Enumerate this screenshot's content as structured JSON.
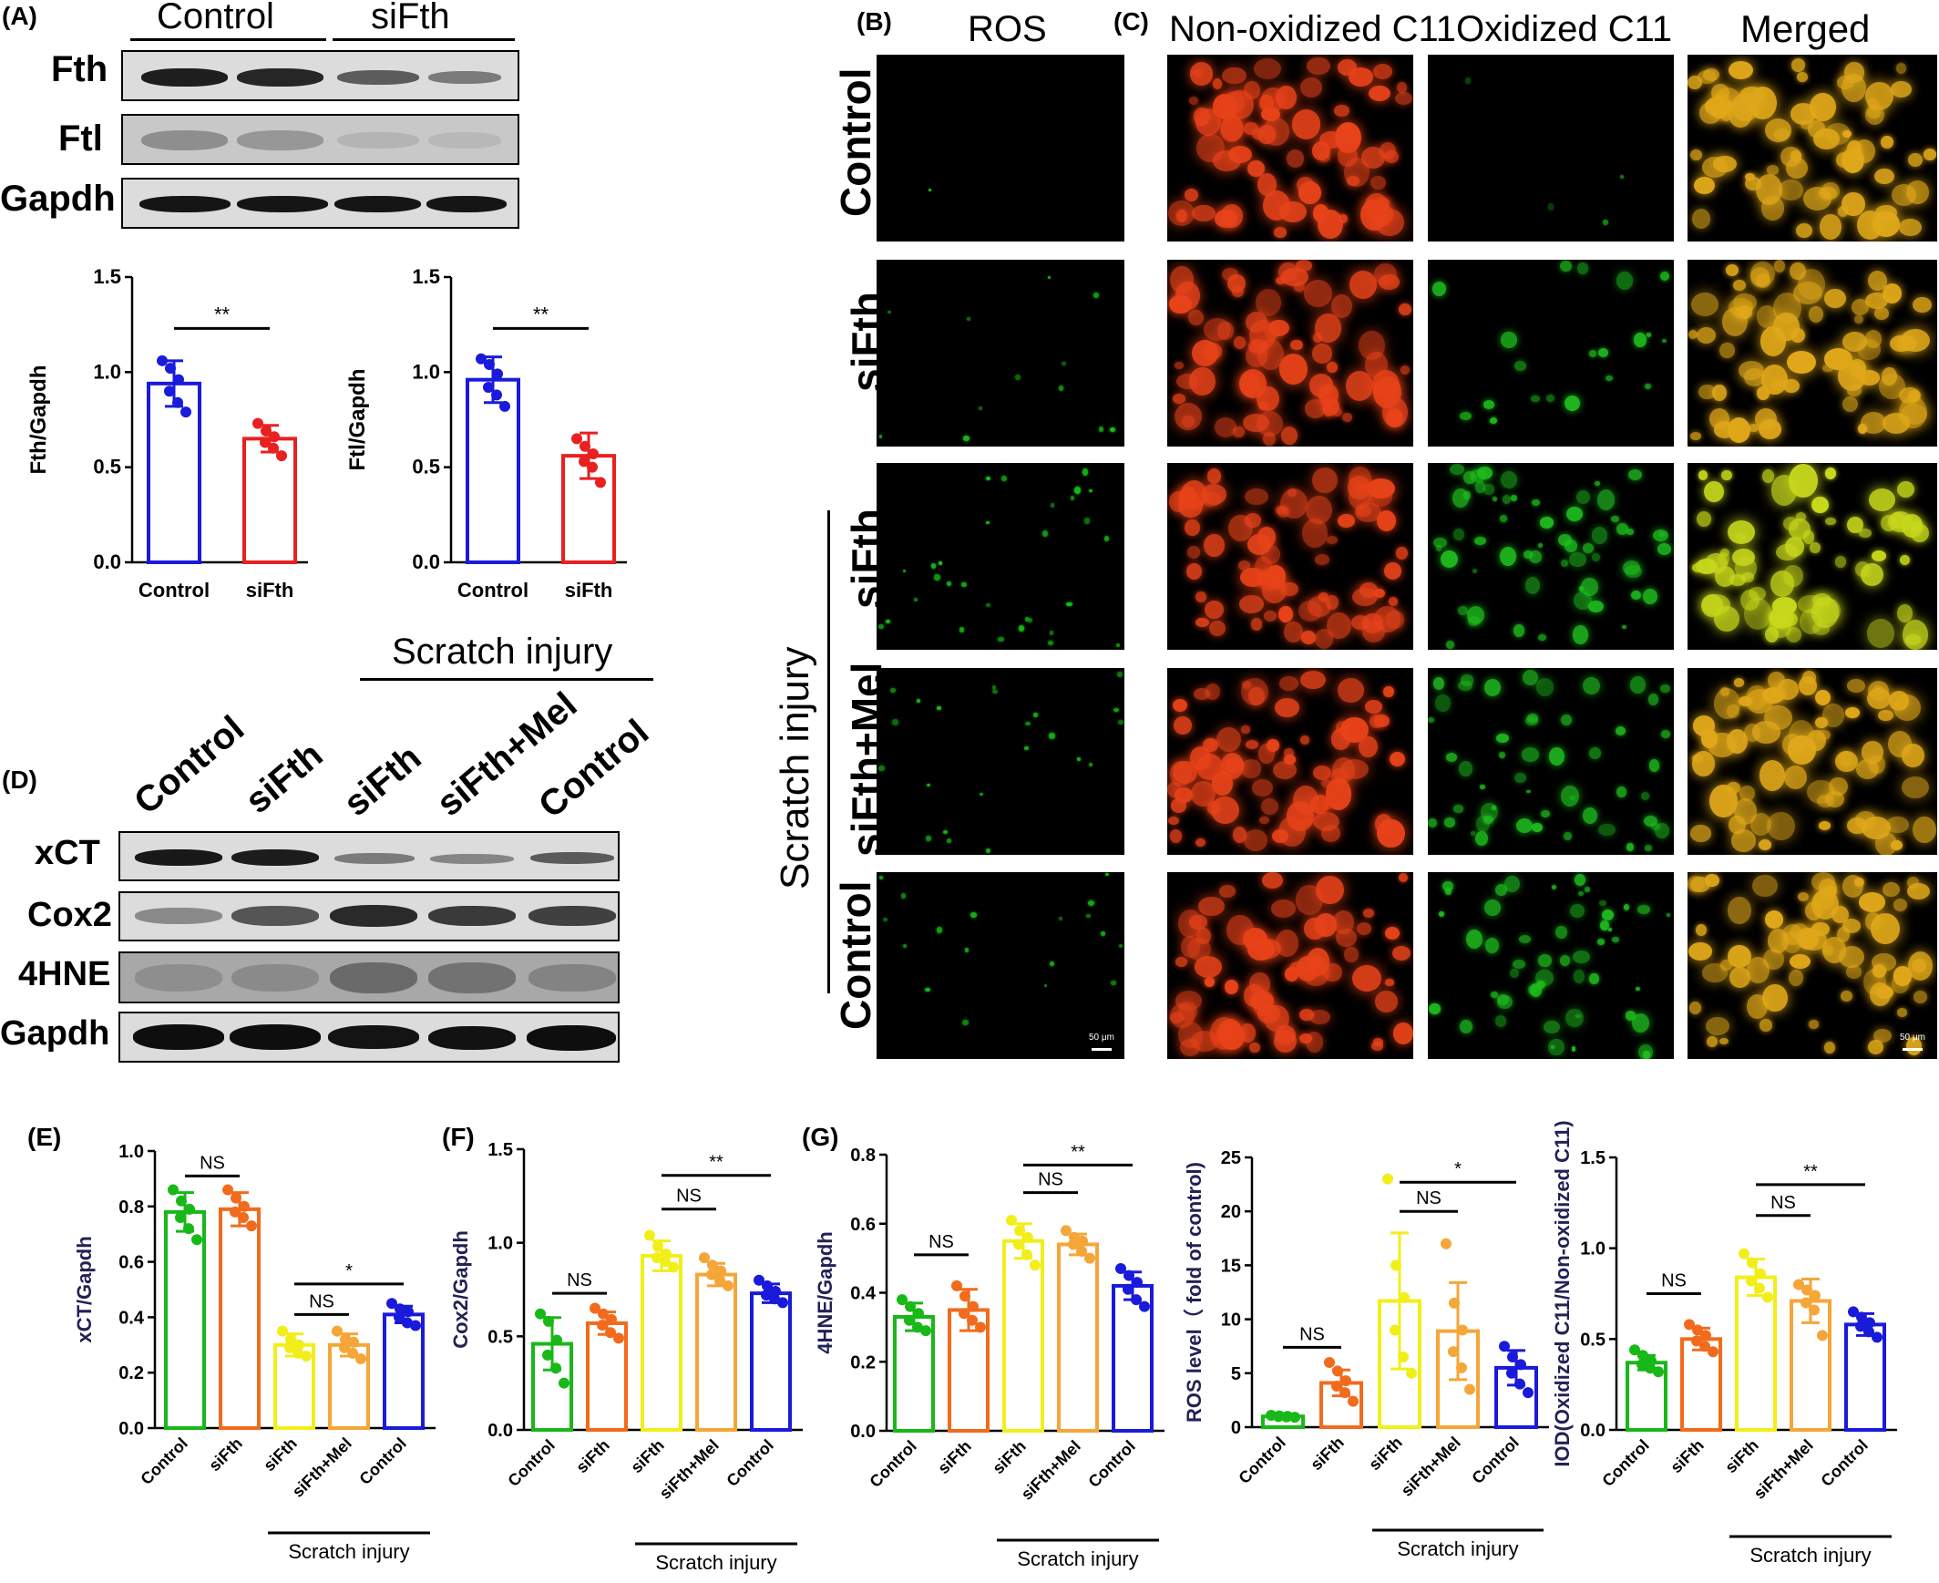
{
  "panel_labels": {
    "A": "(A)",
    "B": "(B)",
    "C": "(C)",
    "D": "(D)",
    "E": "(E)",
    "F": "(F)",
    "G": "(G)"
  },
  "blot_a": {
    "groups": [
      "Control",
      "siFth"
    ],
    "rows": [
      "Fth",
      "Ftl",
      "Gapdh"
    ]
  },
  "blot_d": {
    "group_label": "Scratch injury",
    "lanes": [
      "Control",
      "siFth",
      "siFth",
      "siFth+Mel",
      "Control"
    ],
    "rows": [
      "xCT",
      "Cox2",
      "4HNE",
      "Gapdh"
    ]
  },
  "images": {
    "column_headers": [
      "ROS",
      "Non-oxidized C11",
      "Oxidized C11",
      "Merged"
    ],
    "row_labels": [
      "Control",
      "siFth",
      "siFth",
      "siFth+Mel",
      "Control"
    ],
    "group_label": "Scratch injury",
    "scale_bar": "50 μm",
    "colors": {
      "ros": "#17c417",
      "red": "#e8431a",
      "green": "#1fbf1f",
      "merged": "#e0a81a"
    }
  },
  "chart_data": [
    {
      "id": "A1",
      "type": "bar",
      "title": "",
      "ylabel": "Fth/Gapdh",
      "ylim": [
        0,
        1.5
      ],
      "yticks": [
        "0.0",
        "0.5",
        "1.0",
        "1.5"
      ],
      "categories": [
        "Control",
        "siFth"
      ],
      "values": [
        0.94,
        0.65
      ],
      "sd": [
        0.12,
        0.07
      ],
      "colors": [
        "#1a1adb",
        "#e82020"
      ],
      "points": [
        [
          1.06,
          1.02,
          0.96,
          0.9,
          0.84,
          0.79
        ],
        [
          0.73,
          0.69,
          0.66,
          0.63,
          0.6,
          0.56
        ]
      ],
      "sig": [
        {
          "from": 0,
          "to": 1,
          "label": "**",
          "y": 1.23
        }
      ],
      "group_line": null
    },
    {
      "id": "A2",
      "type": "bar",
      "title": "",
      "ylabel": "Ftl/Gapdh",
      "ylim": [
        0,
        1.5
      ],
      "yticks": [
        "0.0",
        "0.5",
        "1.0",
        "1.5"
      ],
      "categories": [
        "Control",
        "siFth"
      ],
      "values": [
        0.96,
        0.56
      ],
      "sd": [
        0.12,
        0.12
      ],
      "colors": [
        "#1a1adb",
        "#e82020"
      ],
      "points": [
        [
          1.07,
          1.04,
          0.99,
          0.92,
          0.88,
          0.82
        ],
        [
          0.65,
          0.61,
          0.57,
          0.53,
          0.5,
          0.42
        ]
      ],
      "sig": [
        {
          "from": 0,
          "to": 1,
          "label": "**",
          "y": 1.23
        }
      ],
      "group_line": null
    },
    {
      "id": "E",
      "type": "bar",
      "title": "",
      "ylabel": "xCT/Gapdh",
      "ylim": [
        0,
        1.0
      ],
      "yticks": [
        "0.0",
        "0.2",
        "0.4",
        "0.6",
        "0.8",
        "1.0"
      ],
      "categories": [
        "Control",
        "siFth",
        "siFth",
        "siFth+Mel",
        "Control"
      ],
      "values": [
        0.78,
        0.79,
        0.3,
        0.3,
        0.41
      ],
      "sd": [
        0.07,
        0.06,
        0.04,
        0.04,
        0.03
      ],
      "colors": [
        "#18b818",
        "#f26b1d",
        "#f2ee1a",
        "#f5a638",
        "#1a1adb"
      ],
      "points": [
        [
          0.86,
          0.82,
          0.79,
          0.76,
          0.72,
          0.68
        ],
        [
          0.86,
          0.83,
          0.8,
          0.78,
          0.76,
          0.73
        ],
        [
          0.35,
          0.32,
          0.3,
          0.29,
          0.27,
          0.26
        ],
        [
          0.35,
          0.32,
          0.31,
          0.29,
          0.27,
          0.25
        ],
        [
          0.45,
          0.43,
          0.42,
          0.4,
          0.38,
          0.37
        ]
      ],
      "sig": [
        {
          "from": 0,
          "to": 1,
          "label": "NS",
          "y": 0.91
        },
        {
          "from": 2,
          "to": 3,
          "label": "NS",
          "y": 0.41
        },
        {
          "from": 2,
          "to": 4,
          "label": "*",
          "y": 0.52
        }
      ],
      "group_line": {
        "label": "Scratch injury",
        "from": 2,
        "to": 4
      }
    },
    {
      "id": "F",
      "type": "bar",
      "title": "",
      "ylabel": "Cox2/Gapdh",
      "ylim": [
        0,
        1.5
      ],
      "yticks": [
        "0.0",
        "0.5",
        "1.0",
        "1.5"
      ],
      "categories": [
        "Control",
        "siFth",
        "siFth",
        "siFth+Mel",
        "Control"
      ],
      "values": [
        0.46,
        0.57,
        0.93,
        0.83,
        0.73
      ],
      "sd": [
        0.14,
        0.06,
        0.08,
        0.06,
        0.05
      ],
      "colors": [
        "#18b818",
        "#f26b1d",
        "#f2ee1a",
        "#f5a638",
        "#1a1adb"
      ],
      "points": [
        [
          0.62,
          0.58,
          0.48,
          0.4,
          0.33,
          0.25
        ],
        [
          0.65,
          0.62,
          0.59,
          0.56,
          0.52,
          0.49
        ],
        [
          1.04,
          0.98,
          0.94,
          0.92,
          0.9,
          0.87
        ],
        [
          0.92,
          0.88,
          0.85,
          0.83,
          0.8,
          0.77
        ],
        [
          0.8,
          0.77,
          0.74,
          0.72,
          0.7,
          0.68
        ]
      ],
      "sig": [
        {
          "from": 0,
          "to": 1,
          "label": "NS",
          "y": 0.73
        },
        {
          "from": 2,
          "to": 3,
          "label": "NS",
          "y": 1.18
        },
        {
          "from": 2,
          "to": 4,
          "label": "**",
          "y": 1.36
        }
      ],
      "group_line": {
        "label": "Scratch injury",
        "from": 2,
        "to": 4
      }
    },
    {
      "id": "G",
      "type": "bar",
      "title": "",
      "ylabel": "4HNE/Gapdh",
      "ylim": [
        0,
        0.8
      ],
      "yticks": [
        "0.0",
        "0.2",
        "0.4",
        "0.6",
        "0.8"
      ],
      "categories": [
        "Control",
        "siFth",
        "siFth",
        "siFth+Mel",
        "Control"
      ],
      "values": [
        0.33,
        0.35,
        0.55,
        0.54,
        0.42
      ],
      "sd": [
        0.04,
        0.06,
        0.05,
        0.03,
        0.04
      ],
      "colors": [
        "#18b818",
        "#f26b1d",
        "#f2ee1a",
        "#f5a638",
        "#1a1adb"
      ],
      "points": [
        [
          0.38,
          0.36,
          0.34,
          0.32,
          0.3,
          0.29
        ],
        [
          0.42,
          0.39,
          0.36,
          0.34,
          0.32,
          0.3
        ],
        [
          0.61,
          0.58,
          0.56,
          0.54,
          0.51,
          0.48
        ],
        [
          0.58,
          0.56,
          0.55,
          0.54,
          0.52,
          0.5
        ],
        [
          0.47,
          0.45,
          0.43,
          0.41,
          0.38,
          0.36
        ]
      ],
      "sig": [
        {
          "from": 0,
          "to": 1,
          "label": "NS",
          "y": 0.51
        },
        {
          "from": 2,
          "to": 3,
          "label": "NS",
          "y": 0.69
        },
        {
          "from": 2,
          "to": 4,
          "label": "**",
          "y": 0.77
        }
      ],
      "group_line": {
        "label": "Scratch injury",
        "from": 2,
        "to": 4
      }
    },
    {
      "id": "ROS",
      "type": "bar",
      "title": "",
      "ylabel": "ROS level（ fold of control)",
      "ylim": [
        0,
        25
      ],
      "yticks": [
        "0",
        "5",
        "10",
        "15",
        "20",
        "25"
      ],
      "categories": [
        "Control",
        "siFth",
        "siFth",
        "siFth+Mel",
        "Control"
      ],
      "values": [
        1.0,
        4.1,
        11.7,
        8.9,
        5.5
      ],
      "sd": [
        0.1,
        1.2,
        6.3,
        4.5,
        1.6
      ],
      "colors": [
        "#18b818",
        "#f26b1d",
        "#f2ee1a",
        "#f5a638",
        "#1a1adb"
      ],
      "points": [
        [
          1.1,
          1.05,
          1.0,
          0.98,
          0.95,
          0.92
        ],
        [
          6.0,
          5.2,
          4.3,
          3.8,
          3.2,
          2.4
        ],
        [
          23.0,
          15.0,
          12.0,
          9.0,
          6.5,
          5.0
        ],
        [
          17.0,
          11.5,
          9.0,
          7.0,
          5.5,
          3.5
        ],
        [
          7.5,
          6.5,
          5.8,
          5.0,
          4.0,
          3.2
        ]
      ],
      "sig": [
        {
          "from": 0,
          "to": 1,
          "label": "NS",
          "y": 7.4
        },
        {
          "from": 2,
          "to": 3,
          "label": "NS",
          "y": 20.0
        },
        {
          "from": 2,
          "to": 4,
          "label": "*",
          "y": 22.7
        }
      ],
      "group_line": {
        "label": "Scratch injury",
        "from": 2,
        "to": 4
      }
    },
    {
      "id": "IOD",
      "type": "bar",
      "title": "",
      "ylabel": "IOD(Oxidized C11/Non-oxidized C11)",
      "ylim": [
        0,
        1.5
      ],
      "yticks": [
        "0.0",
        "0.5",
        "1.0",
        "1.5"
      ],
      "categories": [
        "Control",
        "siFth",
        "siFth",
        "siFth+Mel",
        "Control"
      ],
      "values": [
        0.37,
        0.5,
        0.84,
        0.71,
        0.58
      ],
      "sd": [
        0.04,
        0.06,
        0.1,
        0.12,
        0.06
      ],
      "colors": [
        "#18b818",
        "#f26b1d",
        "#f2ee1a",
        "#f5a638",
        "#1a1adb"
      ],
      "points": [
        [
          0.44,
          0.41,
          0.38,
          0.36,
          0.34,
          0.32
        ],
        [
          0.58,
          0.55,
          0.52,
          0.49,
          0.46,
          0.43
        ],
        [
          0.97,
          0.92,
          0.86,
          0.82,
          0.78,
          0.73
        ],
        [
          0.8,
          0.77,
          0.74,
          0.7,
          0.66,
          0.52
        ],
        [
          0.65,
          0.62,
          0.59,
          0.57,
          0.54,
          0.51
        ]
      ],
      "sig": [
        {
          "from": 0,
          "to": 1,
          "label": "NS",
          "y": 0.75
        },
        {
          "from": 2,
          "to": 3,
          "label": "NS",
          "y": 1.18
        },
        {
          "from": 2,
          "to": 4,
          "label": "**",
          "y": 1.35
        }
      ],
      "group_line": {
        "label": "Scratch injury",
        "from": 2,
        "to": 4
      }
    }
  ]
}
